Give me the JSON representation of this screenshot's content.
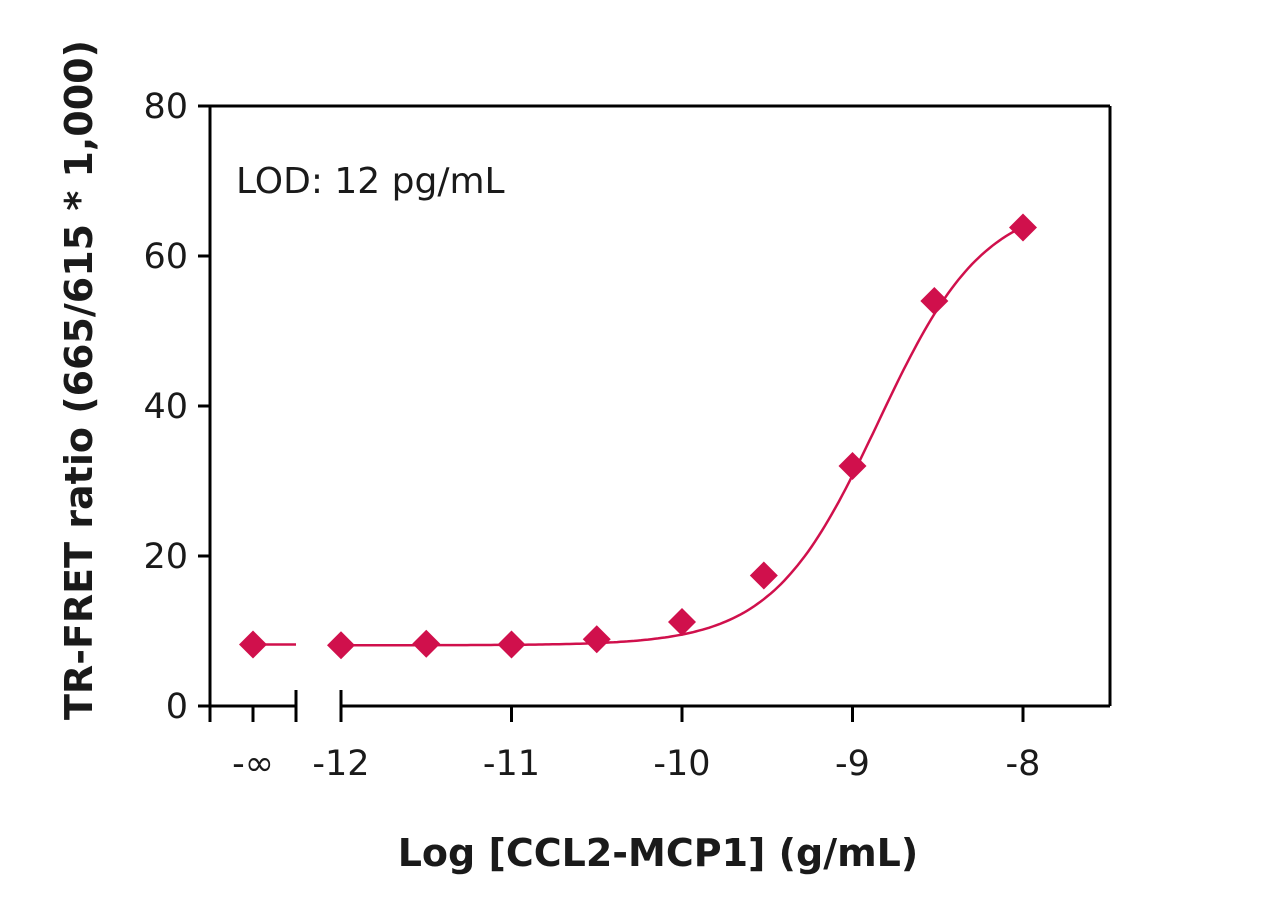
{
  "chart_data": {
    "type": "scatter",
    "xlabel": "Log [CCL2-MCP1] (g/mL)",
    "ylabel": "TR-FRET ratio (665/615 * 1,000)",
    "annotation": "LOD: 12 pg/mL",
    "ylim": [
      0,
      80
    ],
    "xlim": [
      -12.75,
      -7.5
    ],
    "x_break_label": "-∞",
    "x_ticks": [
      -12,
      -11,
      -10,
      -9,
      -8
    ],
    "x_tick_labels": [
      "-12",
      "-11",
      "-10",
      "-9",
      "-8"
    ],
    "y_ticks": [
      0,
      20,
      40,
      60,
      80
    ],
    "y_tick_labels": [
      "0",
      "20",
      "40",
      "60",
      "80"
    ],
    "grid": false,
    "series_color": "#d0104c",
    "zero_point": {
      "x_label": "-∞",
      "y": 8.2
    },
    "points": [
      {
        "x": -12.0,
        "y": 8.1
      },
      {
        "x": -11.5,
        "y": 8.3
      },
      {
        "x": -11.0,
        "y": 8.2
      },
      {
        "x": -10.5,
        "y": 8.9
      },
      {
        "x": -10.0,
        "y": 11.2
      },
      {
        "x": -9.52,
        "y": 17.4
      },
      {
        "x": -9.0,
        "y": 32.0
      },
      {
        "x": -8.52,
        "y": 54.0
      },
      {
        "x": -8.0,
        "y": 63.8
      }
    ],
    "fit": {
      "bottom": 8.1,
      "top": 67.5,
      "logEC50": -8.85,
      "hill": 1.4
    }
  }
}
